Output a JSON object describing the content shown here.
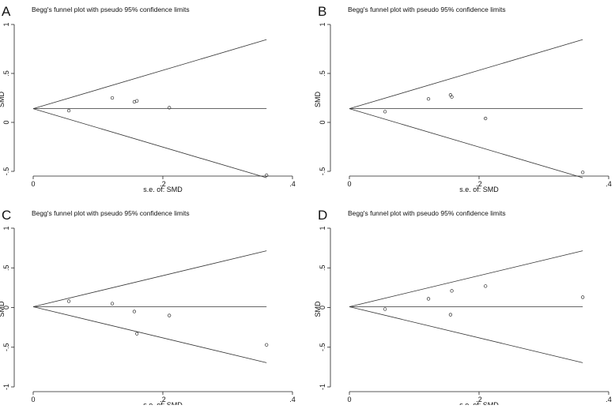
{
  "chart_data": [
    {
      "type": "scatter",
      "panel_letter": "A",
      "title": "Begg's funnel plot with pseudo 95% confidence limits",
      "xlabel": "s.e. of: SMD",
      "ylabel": "SMD",
      "xlim": [
        0,
        0.4
      ],
      "ylim": [
        -0.5,
        1
      ],
      "x_ticks": [
        {
          "value": 0,
          "label": "0"
        },
        {
          "value": 0.2,
          "label": ".2"
        },
        {
          "value": 0.4,
          "label": ".4"
        }
      ],
      "y_ticks": [
        {
          "value": -0.5,
          "label": "-.5"
        },
        {
          "value": 0,
          "label": "0"
        },
        {
          "value": 0.5,
          "label": ".5"
        },
        {
          "value": 1,
          "label": "1"
        }
      ],
      "pooled_effect": 0.14,
      "ci_max_se": 0.36,
      "points": [
        {
          "x": 0.055,
          "y": 0.12
        },
        {
          "x": 0.122,
          "y": 0.25
        },
        {
          "x": 0.156,
          "y": 0.21
        },
        {
          "x": 0.16,
          "y": 0.22
        },
        {
          "x": 0.21,
          "y": 0.15
        },
        {
          "x": 0.36,
          "y": -0.54
        }
      ]
    },
    {
      "type": "scatter",
      "panel_letter": "B",
      "title": "Begg's funnel plot with pseudo 95% confidence limits",
      "xlabel": "s.e. of: SMD",
      "ylabel": "SMD",
      "xlim": [
        0,
        0.4
      ],
      "ylim": [
        -0.5,
        1
      ],
      "x_ticks": [
        {
          "value": 0,
          "label": "0"
        },
        {
          "value": 0.2,
          "label": ".2"
        },
        {
          "value": 0.4,
          "label": ".4"
        }
      ],
      "y_ticks": [
        {
          "value": -0.5,
          "label": "-.5"
        },
        {
          "value": 0,
          "label": "0"
        },
        {
          "value": 0.5,
          "label": ".5"
        },
        {
          "value": 1,
          "label": "1"
        }
      ],
      "pooled_effect": 0.14,
      "ci_max_se": 0.36,
      "points": [
        {
          "x": 0.055,
          "y": 0.11
        },
        {
          "x": 0.122,
          "y": 0.24
        },
        {
          "x": 0.156,
          "y": 0.28
        },
        {
          "x": 0.158,
          "y": 0.26
        },
        {
          "x": 0.21,
          "y": 0.04
        },
        {
          "x": 0.36,
          "y": -0.51
        }
      ]
    },
    {
      "type": "scatter",
      "panel_letter": "C",
      "title": "Begg's funnel plot with pseudo 95% confidence limits",
      "xlabel": "s.e. of: SMD",
      "ylabel": "SMD",
      "xlim": [
        0,
        0.4
      ],
      "ylim": [
        -1,
        1
      ],
      "x_ticks": [
        {
          "value": 0,
          "label": "0"
        },
        {
          "value": 0.2,
          "label": ".2"
        },
        {
          "value": 0.4,
          "label": ".4"
        }
      ],
      "y_ticks": [
        {
          "value": -1,
          "label": "-1"
        },
        {
          "value": -0.5,
          "label": "-.5"
        },
        {
          "value": 0,
          "label": "0"
        },
        {
          "value": 0.5,
          "label": ".5"
        },
        {
          "value": 1,
          "label": "1"
        }
      ],
      "pooled_effect": 0.01,
      "ci_max_se": 0.36,
      "points": [
        {
          "x": 0.055,
          "y": 0.08
        },
        {
          "x": 0.122,
          "y": 0.05
        },
        {
          "x": 0.156,
          "y": -0.05
        },
        {
          "x": 0.16,
          "y": -0.33
        },
        {
          "x": 0.21,
          "y": -0.1
        },
        {
          "x": 0.36,
          "y": -0.47
        }
      ]
    },
    {
      "type": "scatter",
      "panel_letter": "D",
      "title": "Begg's funnel plot with pseudo 95% confidence limits",
      "xlabel": "s.e. of: SMD",
      "ylabel": "SMD",
      "xlim": [
        0,
        0.4
      ],
      "ylim": [
        -1,
        1
      ],
      "x_ticks": [
        {
          "value": 0,
          "label": "0"
        },
        {
          "value": 0.2,
          "label": ".2"
        },
        {
          "value": 0.4,
          "label": ".4"
        }
      ],
      "y_ticks": [
        {
          "value": -1,
          "label": "-1"
        },
        {
          "value": -0.5,
          "label": "-.5"
        },
        {
          "value": 0,
          "label": "0"
        },
        {
          "value": 0.5,
          "label": ".5"
        },
        {
          "value": 1,
          "label": "1"
        }
      ],
      "pooled_effect": 0.01,
      "ci_max_se": 0.36,
      "points": [
        {
          "x": 0.055,
          "y": -0.02
        },
        {
          "x": 0.122,
          "y": 0.11
        },
        {
          "x": 0.156,
          "y": -0.09
        },
        {
          "x": 0.158,
          "y": 0.21
        },
        {
          "x": 0.21,
          "y": 0.27
        },
        {
          "x": 0.36,
          "y": 0.13
        }
      ]
    }
  ]
}
